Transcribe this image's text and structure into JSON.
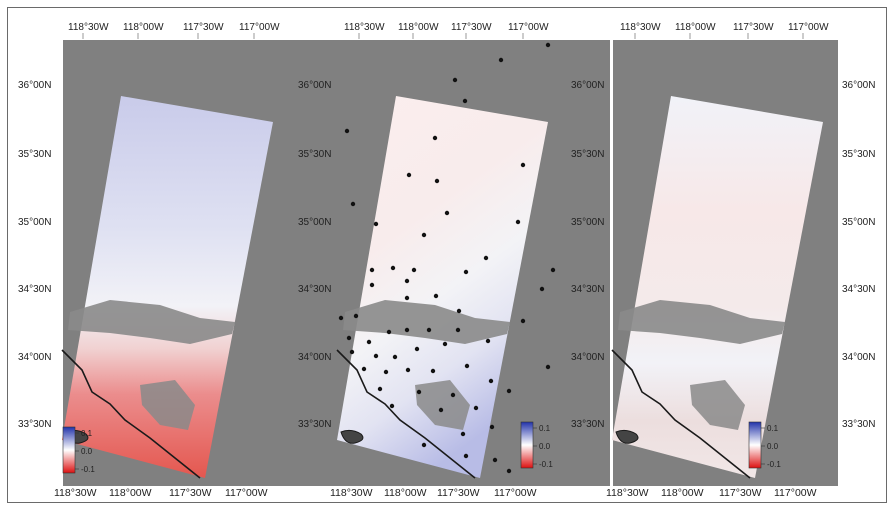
{
  "figure": {
    "panel_count": 3,
    "colors": {
      "map_background": "#808080",
      "coastline": "#1a1a1a",
      "masked_terrain": "#8a8a8a",
      "positive": "#3344cc",
      "negative": "#e01818",
      "neutral": "#ffffff",
      "station_marker": "#111111"
    },
    "colorbar": {
      "ticks": [
        "0.1",
        "0.0",
        "-0.1"
      ],
      "range": [
        -0.1,
        0.1
      ]
    },
    "top_lon_labels": [
      "118°30W",
      "118°00W",
      "117°30W",
      "117°00W"
    ],
    "bottom_lon_labels": [
      "118°30W",
      "118°00W",
      "117°30W",
      "117°00W"
    ],
    "lat_labels": [
      "36°00N",
      "35°30N",
      "35°00N",
      "34°30N",
      "34°00N",
      "33°30N"
    ],
    "panels": [
      {
        "id": "a",
        "lat_side": "left",
        "colorbar_position": "bottom-left",
        "has_stations": false,
        "shows_top_lon_labels": true,
        "pattern": "blue-north-red-south"
      },
      {
        "id": "b",
        "lat_side": "left",
        "colorbar_position": "bottom-right",
        "has_stations": true,
        "shows_top_lon_labels": true,
        "pattern": "pale-red-north-blue-southeast"
      },
      {
        "id": "c",
        "lat_side": "both",
        "colorbar_position": "bottom-right",
        "has_stations": false,
        "shows_top_lon_labels": true,
        "pattern": "mostly-neutral"
      }
    ]
  }
}
